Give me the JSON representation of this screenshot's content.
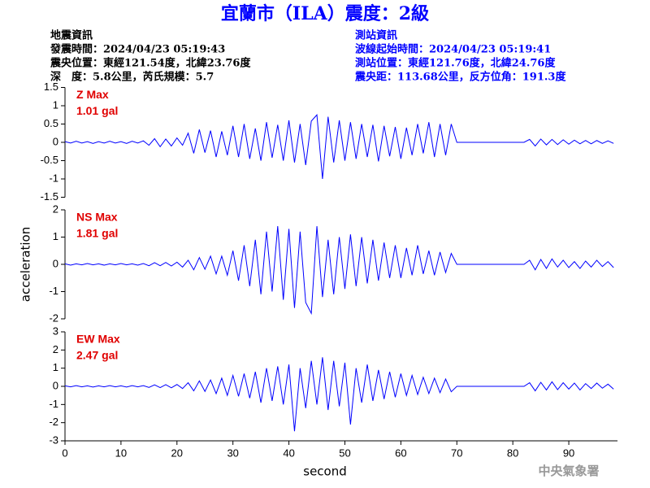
{
  "header": {
    "title": "宜蘭市（ILA）震度：2級",
    "earthquake_info": [
      "地震資訊",
      "發震時間：2024/04/23 05:19:43",
      "震央位置：東經121.54度，北緯23.76度",
      "深　度：5.8公里，芮氏規模：5.7"
    ],
    "station_info": [
      "測站資訊",
      "波線起始時間：2024/04/23 05:19:41",
      "測站位置：東經121.76度，北緯24.76度",
      "震央距：113.68公里，反方位角：191.3度"
    ]
  },
  "watermark": "中央氣象署",
  "chart_data": [
    {
      "type": "line",
      "annotations": [
        "Z Max",
        "1.01 gal"
      ],
      "xlim": [
        0,
        98.7
      ],
      "ylim": [
        -1.5,
        1.5
      ],
      "yticks": [
        -1.5,
        -1,
        -0.5,
        0,
        0.5,
        1,
        1.5
      ],
      "x": [
        0,
        1,
        2,
        3,
        4,
        5,
        6,
        7,
        8,
        9,
        10,
        11,
        12,
        13,
        14,
        15,
        16,
        17,
        18,
        19,
        20,
        21,
        22,
        23,
        24,
        25,
        26,
        27,
        28,
        29,
        30,
        31,
        32,
        33,
        34,
        35,
        36,
        37,
        38,
        39,
        40,
        41,
        42,
        43,
        44,
        45,
        46,
        47,
        48,
        49,
        50,
        51,
        52,
        53,
        54,
        55,
        56,
        57,
        58,
        59,
        60,
        61,
        62,
        63,
        64,
        65,
        66,
        67,
        68,
        69,
        70,
        71,
        72,
        73,
        74,
        75,
        76,
        77,
        78,
        79,
        80,
        81,
        82,
        83,
        84,
        85,
        86,
        87,
        88,
        89,
        90,
        91,
        92,
        93,
        94,
        95,
        96,
        97,
        98
      ],
      "series": [
        {
          "color": "#0000ff",
          "values": [
            0.02,
            -0.02,
            0.03,
            -0.02,
            0.02,
            -0.03,
            0.02,
            -0.02,
            0.03,
            -0.02,
            0.02,
            -0.03,
            0.03,
            -0.02,
            0.04,
            -0.08,
            0.1,
            -0.12,
            0.09,
            -0.1,
            0.12,
            -0.08,
            0.25,
            -0.3,
            0.35,
            -0.28,
            0.32,
            -0.4,
            0.3,
            -0.35,
            0.45,
            -0.4,
            0.5,
            -0.45,
            0.38,
            -0.5,
            0.55,
            -0.42,
            0.48,
            -0.5,
            0.6,
            -0.55,
            0.5,
            -0.62,
            0.58,
            0.75,
            -1.0,
            0.7,
            -0.55,
            0.6,
            -0.5,
            0.55,
            -0.45,
            0.5,
            -0.4,
            0.48,
            -0.52,
            0.45,
            -0.38,
            0.42,
            -0.45,
            0.4,
            -0.35,
            0.5,
            -0.3,
            0.55,
            -0.4,
            0.5,
            -0.35,
            0.5,
            0,
            0,
            0,
            0,
            0,
            0,
            0,
            0,
            0,
            0,
            0,
            0,
            0,
            0.08,
            -0.1,
            0.09,
            -0.07,
            0.08,
            -0.06,
            0.07,
            -0.05,
            0.06,
            -0.04,
            0.05,
            -0.04,
            0.05,
            -0.03,
            0.04,
            -0.03
          ]
        }
      ]
    },
    {
      "type": "line",
      "annotations": [
        "NS Max",
        "1.81 gal"
      ],
      "ylabel": "acceleration",
      "xlim": [
        0,
        98.7
      ],
      "ylim": [
        -2,
        2
      ],
      "yticks": [
        -2,
        -1,
        0,
        1,
        2
      ],
      "x": [
        0,
        1,
        2,
        3,
        4,
        5,
        6,
        7,
        8,
        9,
        10,
        11,
        12,
        13,
        14,
        15,
        16,
        17,
        18,
        19,
        20,
        21,
        22,
        23,
        24,
        25,
        26,
        27,
        28,
        29,
        30,
        31,
        32,
        33,
        34,
        35,
        36,
        37,
        38,
        39,
        40,
        41,
        42,
        43,
        44,
        45,
        46,
        47,
        48,
        49,
        50,
        51,
        52,
        53,
        54,
        55,
        56,
        57,
        58,
        59,
        60,
        61,
        62,
        63,
        64,
        65,
        66,
        67,
        68,
        69,
        70,
        71,
        72,
        73,
        74,
        75,
        76,
        77,
        78,
        79,
        80,
        81,
        82,
        83,
        84,
        85,
        86,
        87,
        88,
        89,
        90,
        91,
        92,
        93,
        94,
        95,
        96,
        97,
        98
      ],
      "series": [
        {
          "color": "#0000ff",
          "values": [
            0.02,
            -0.03,
            0.02,
            -0.02,
            0.03,
            -0.02,
            0.02,
            -0.03,
            0.02,
            -0.02,
            0.03,
            -0.02,
            0.02,
            -0.03,
            0.03,
            -0.05,
            0.06,
            -0.05,
            0.07,
            -0.06,
            0.08,
            -0.1,
            0.15,
            -0.2,
            0.25,
            -0.18,
            0.3,
            -0.35,
            0.3,
            -0.4,
            0.5,
            -0.6,
            0.7,
            -0.8,
            0.9,
            -1.1,
            1.2,
            -1.0,
            1.4,
            -1.3,
            1.3,
            -1.6,
            1.2,
            -1.4,
            -1.8,
            1.4,
            -1.2,
            0.9,
            -1.1,
            1.0,
            -0.9,
            1.1,
            -0.8,
            1.0,
            -0.7,
            0.9,
            -0.6,
            0.8,
            -0.5,
            0.7,
            -0.5,
            0.6,
            -0.4,
            0.7,
            -0.35,
            0.5,
            -0.4,
            0.45,
            -0.3,
            0.4,
            0,
            0,
            0,
            0,
            0,
            0,
            0,
            0,
            0,
            0,
            0,
            0,
            0,
            0.15,
            -0.2,
            0.18,
            -0.15,
            0.2,
            -0.1,
            0.15,
            -0.12,
            0.1,
            -0.15,
            0.12,
            -0.1,
            0.15,
            -0.08,
            0.1,
            -0.12
          ]
        }
      ]
    },
    {
      "type": "line",
      "annotations": [
        "EW Max",
        "2.47 gal"
      ],
      "xlabel": "second",
      "xlim": [
        0,
        98.7
      ],
      "xticks": [
        0,
        10,
        20,
        30,
        40,
        50,
        60,
        70,
        80,
        90
      ],
      "ylim": [
        -3,
        3
      ],
      "yticks": [
        -3,
        -2,
        -1,
        0,
        1,
        2,
        3
      ],
      "x": [
        0,
        1,
        2,
        3,
        4,
        5,
        6,
        7,
        8,
        9,
        10,
        11,
        12,
        13,
        14,
        15,
        16,
        17,
        18,
        19,
        20,
        21,
        22,
        23,
        24,
        25,
        26,
        27,
        28,
        29,
        30,
        31,
        32,
        33,
        34,
        35,
        36,
        37,
        38,
        39,
        40,
        41,
        42,
        43,
        44,
        45,
        46,
        47,
        48,
        49,
        50,
        51,
        52,
        53,
        54,
        55,
        56,
        57,
        58,
        59,
        60,
        61,
        62,
        63,
        64,
        65,
        66,
        67,
        68,
        69,
        70,
        71,
        72,
        73,
        74,
        75,
        76,
        77,
        78,
        79,
        80,
        81,
        82,
        83,
        84,
        85,
        86,
        87,
        88,
        89,
        90,
        91,
        92,
        93,
        94,
        95,
        96,
        97,
        98
      ],
      "series": [
        {
          "color": "#0000ff",
          "values": [
            0.03,
            -0.03,
            0.04,
            -0.03,
            0.03,
            -0.04,
            0.03,
            -0.03,
            0.04,
            -0.03,
            0.03,
            -0.04,
            0.04,
            -0.03,
            0.04,
            -0.06,
            0.08,
            -0.07,
            0.09,
            -0.08,
            0.1,
            -0.12,
            0.2,
            -0.25,
            0.3,
            -0.28,
            0.35,
            -0.4,
            0.45,
            -0.5,
            0.6,
            -0.55,
            0.7,
            -0.65,
            0.8,
            -0.9,
            1.0,
            -0.8,
            1.1,
            -1.0,
            1.2,
            -2.47,
            1.0,
            -1.2,
            1.4,
            -1.0,
            1.6,
            -1.3,
            1.4,
            -1.1,
            1.3,
            -2.1,
            1.0,
            -0.9,
            1.2,
            -0.8,
            0.9,
            -0.7,
            0.8,
            -0.6,
            0.7,
            -0.5,
            0.6,
            -0.45,
            0.5,
            -0.4,
            0.45,
            -0.35,
            0.4,
            -0.3,
            0,
            0,
            0,
            0,
            0,
            0,
            0,
            0,
            0,
            0,
            0,
            0,
            0,
            0.2,
            -0.25,
            0.22,
            -0.2,
            0.25,
            -0.18,
            0.2,
            -0.15,
            0.18,
            -0.2,
            0.15,
            -0.12,
            0.18,
            -0.1,
            0.12,
            -0.15
          ]
        }
      ]
    }
  ]
}
